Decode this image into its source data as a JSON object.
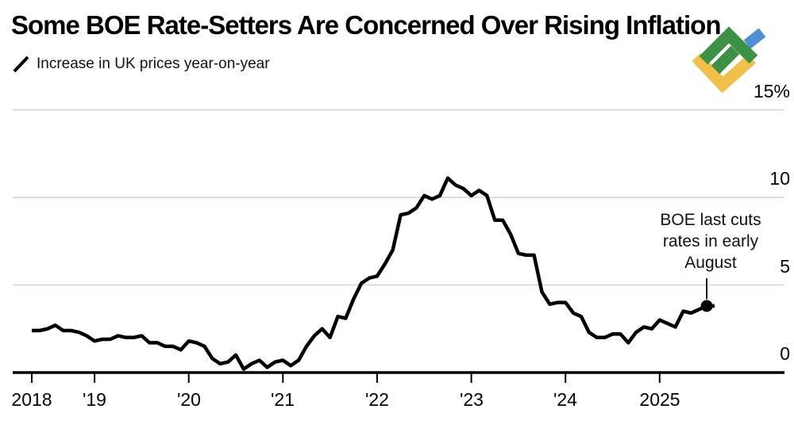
{
  "header": {
    "title": "Some BOE Rate-Setters Are Concerned Over Rising Inflation",
    "legend_label": "Increase in UK prices year-on-year"
  },
  "logo": {
    "name": "LiteFinance logo",
    "colors": {
      "green": "#3C9144",
      "blue": "#4D90D5",
      "yellow": "#F0C04A"
    }
  },
  "annotation": {
    "lines": [
      "BOE last cuts",
      "rates in early",
      "August"
    ],
    "point_month": "2025-07"
  },
  "chart_data": {
    "type": "line",
    "title": "Some BOE Rate-Setters Are Concerned Over Rising Inflation",
    "subtitle": "Increase in UK prices year-on-year",
    "unit": "%",
    "ylim": [
      0,
      15
    ],
    "grid": "horizontal",
    "legend_position": "top-left",
    "line_color": "#000000",
    "gridline_color": "#d2d2d2",
    "axis_color": "#000000",
    "y_ticks": [
      {
        "label": "15%",
        "value": 15
      },
      {
        "label": "10",
        "value": 10
      },
      {
        "label": "5",
        "value": 5
      },
      {
        "label": "0",
        "value": 0
      }
    ],
    "x_ticks": [
      {
        "label": "2018",
        "month": "2018-05"
      },
      {
        "label": "'19",
        "month": "2019-01"
      },
      {
        "label": "'20",
        "month": "2020-01"
      },
      {
        "label": "'21",
        "month": "2021-01"
      },
      {
        "label": "'22",
        "month": "2022-01"
      },
      {
        "label": "'23",
        "month": "2023-01"
      },
      {
        "label": "'24",
        "month": "2024-01"
      },
      {
        "label": "2025",
        "month": "2025-01"
      }
    ],
    "series_name": "UK CPI year-on-year %",
    "months": [
      "2018-05",
      "2018-06",
      "2018-07",
      "2018-08",
      "2018-09",
      "2018-10",
      "2018-11",
      "2018-12",
      "2019-01",
      "2019-02",
      "2019-03",
      "2019-04",
      "2019-05",
      "2019-06",
      "2019-07",
      "2019-08",
      "2019-09",
      "2019-10",
      "2019-11",
      "2019-12",
      "2020-01",
      "2020-02",
      "2020-03",
      "2020-04",
      "2020-05",
      "2020-06",
      "2020-07",
      "2020-08",
      "2020-09",
      "2020-10",
      "2020-11",
      "2020-12",
      "2021-01",
      "2021-02",
      "2021-03",
      "2021-04",
      "2021-05",
      "2021-06",
      "2021-07",
      "2021-08",
      "2021-09",
      "2021-10",
      "2021-11",
      "2021-12",
      "2022-01",
      "2022-02",
      "2022-03",
      "2022-04",
      "2022-05",
      "2022-06",
      "2022-07",
      "2022-08",
      "2022-09",
      "2022-10",
      "2022-11",
      "2022-12",
      "2023-01",
      "2023-02",
      "2023-03",
      "2023-04",
      "2023-05",
      "2023-06",
      "2023-07",
      "2023-08",
      "2023-09",
      "2023-10",
      "2023-11",
      "2023-12",
      "2024-01",
      "2024-02",
      "2024-03",
      "2024-04",
      "2024-05",
      "2024-06",
      "2024-07",
      "2024-08",
      "2024-09",
      "2024-10",
      "2024-11",
      "2024-12",
      "2025-01",
      "2025-02",
      "2025-03",
      "2025-04",
      "2025-05",
      "2025-06",
      "2025-07",
      "2025-08"
    ],
    "values": [
      2.4,
      2.4,
      2.5,
      2.7,
      2.4,
      2.4,
      2.3,
      2.1,
      1.8,
      1.9,
      1.9,
      2.1,
      2.0,
      2.0,
      2.1,
      1.7,
      1.7,
      1.5,
      1.5,
      1.3,
      1.8,
      1.7,
      1.5,
      0.8,
      0.5,
      0.6,
      1.0,
      0.2,
      0.5,
      0.7,
      0.3,
      0.6,
      0.7,
      0.4,
      0.7,
      1.5,
      2.1,
      2.5,
      2.0,
      3.2,
      3.1,
      4.2,
      5.1,
      5.4,
      5.5,
      6.2,
      7.0,
      9.0,
      9.1,
      9.4,
      10.1,
      9.9,
      10.1,
      11.1,
      10.7,
      10.5,
      10.1,
      10.4,
      10.1,
      8.7,
      8.7,
      7.9,
      6.8,
      6.7,
      6.7,
      4.6,
      3.9,
      4.0,
      4.0,
      3.4,
      3.2,
      2.3,
      2.0,
      2.0,
      2.2,
      2.2,
      1.7,
      2.3,
      2.6,
      2.5,
      3.0,
      2.8,
      2.6,
      3.5,
      3.4,
      3.6,
      3.8,
      3.8
    ]
  }
}
